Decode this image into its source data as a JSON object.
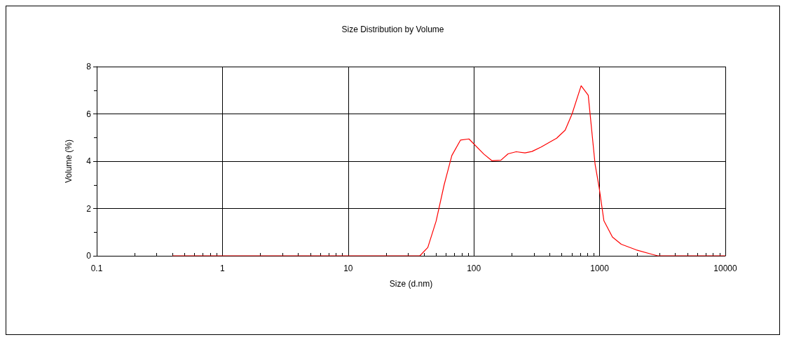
{
  "chart_data": {
    "type": "line",
    "title": "Size Distribution by Volume",
    "xlabel": "Size (d.nm)",
    "ylabel": "Volume (%)",
    "log": "x",
    "xlim": [
      0.1,
      10000
    ],
    "xticks": [
      0.1,
      1,
      10,
      100,
      1000,
      10000
    ],
    "ylim": [
      0,
      8
    ],
    "yticks": [
      0,
      2,
      4,
      6,
      8
    ],
    "grid": true,
    "marker": "none",
    "line_style": "solid",
    "series": [
      {
        "color": "#ff0000",
        "x": [
          0.4,
          37.2,
          43,
          50.1,
          58,
          66.8,
          78.2,
          91.4,
          120,
          139,
          164,
          187,
          217,
          255,
          290,
          343,
          397,
          455,
          532,
          604,
          713,
          812,
          921,
          990,
          1082,
          1265,
          1486,
          1955,
          2625,
          2900,
          10000
        ],
        "values": [
          0,
          0,
          0.35,
          1.47,
          3.0,
          4.24,
          4.89,
          4.94,
          4.3,
          4.02,
          4.04,
          4.31,
          4.4,
          4.35,
          4.41,
          4.6,
          4.79,
          4.97,
          5.31,
          6.0,
          7.19,
          6.79,
          3.86,
          2.91,
          1.48,
          0.79,
          0.49,
          0.25,
          0.06,
          0,
          0
        ]
      }
    ]
  }
}
